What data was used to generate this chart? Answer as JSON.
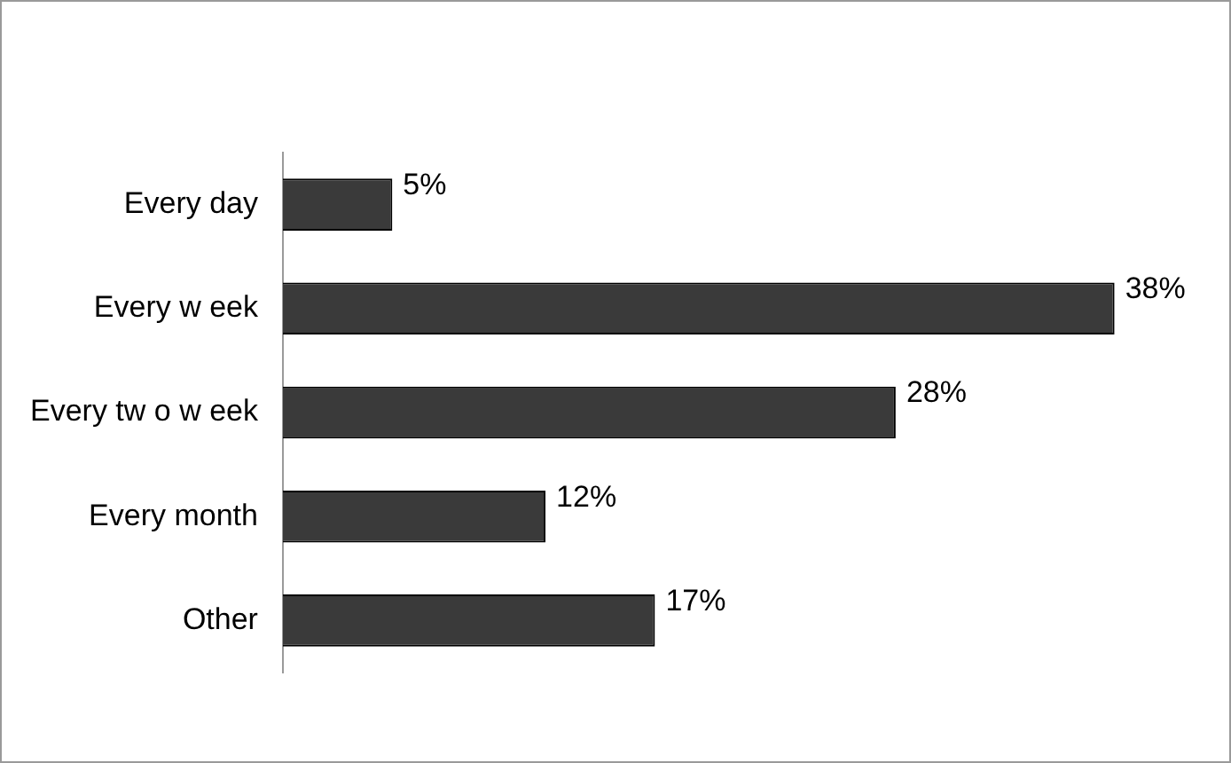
{
  "chart_data": {
    "type": "bar",
    "orientation": "horizontal",
    "categories": [
      "Every day",
      "Every w eek",
      "Every tw o w eek",
      "Every month",
      "Other"
    ],
    "values": [
      5,
      38,
      28,
      12,
      17
    ],
    "value_labels": [
      "5%",
      "38%",
      "28%",
      "12%",
      "17%"
    ],
    "color": "#3a3a3a",
    "legend": false
  }
}
